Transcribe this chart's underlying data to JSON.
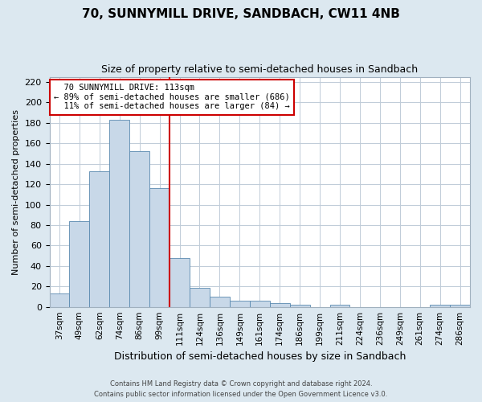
{
  "title": "70, SUNNYMILL DRIVE, SANDBACH, CW11 4NB",
  "subtitle": "Size of property relative to semi-detached houses in Sandbach",
  "xlabel": "Distribution of semi-detached houses by size in Sandbach",
  "ylabel": "Number of semi-detached properties",
  "footnote1": "Contains HM Land Registry data © Crown copyright and database right 2024.",
  "footnote2": "Contains public sector information licensed under the Open Government Licence v3.0.",
  "categories": [
    "37sqm",
    "49sqm",
    "62sqm",
    "74sqm",
    "86sqm",
    "99sqm",
    "111sqm",
    "124sqm",
    "136sqm",
    "149sqm",
    "161sqm",
    "174sqm",
    "186sqm",
    "199sqm",
    "211sqm",
    "224sqm",
    "236sqm",
    "249sqm",
    "261sqm",
    "274sqm",
    "286sqm"
  ],
  "values": [
    13,
    84,
    133,
    183,
    152,
    116,
    48,
    19,
    10,
    6,
    6,
    4,
    2,
    0,
    2,
    0,
    0,
    0,
    0,
    2,
    2
  ],
  "bar_color": "#c8d8e8",
  "bar_edge_color": "#5a8ab0",
  "property_label": "70 SUNNYMILL DRIVE: 113sqm",
  "pct_smaller": 89,
  "pct_larger": 11,
  "count_smaller": 686,
  "count_larger": 84,
  "vline_bin_index": 6,
  "vline_color": "#cc0000",
  "annotation_box_color": "#cc0000",
  "ylim": [
    0,
    225
  ],
  "yticks": [
    0,
    20,
    40,
    60,
    80,
    100,
    120,
    140,
    160,
    180,
    200,
    220
  ],
  "background_color": "#dce8f0",
  "plot_bg_color": "#ffffff",
  "grid_color": "#c0ccd8"
}
